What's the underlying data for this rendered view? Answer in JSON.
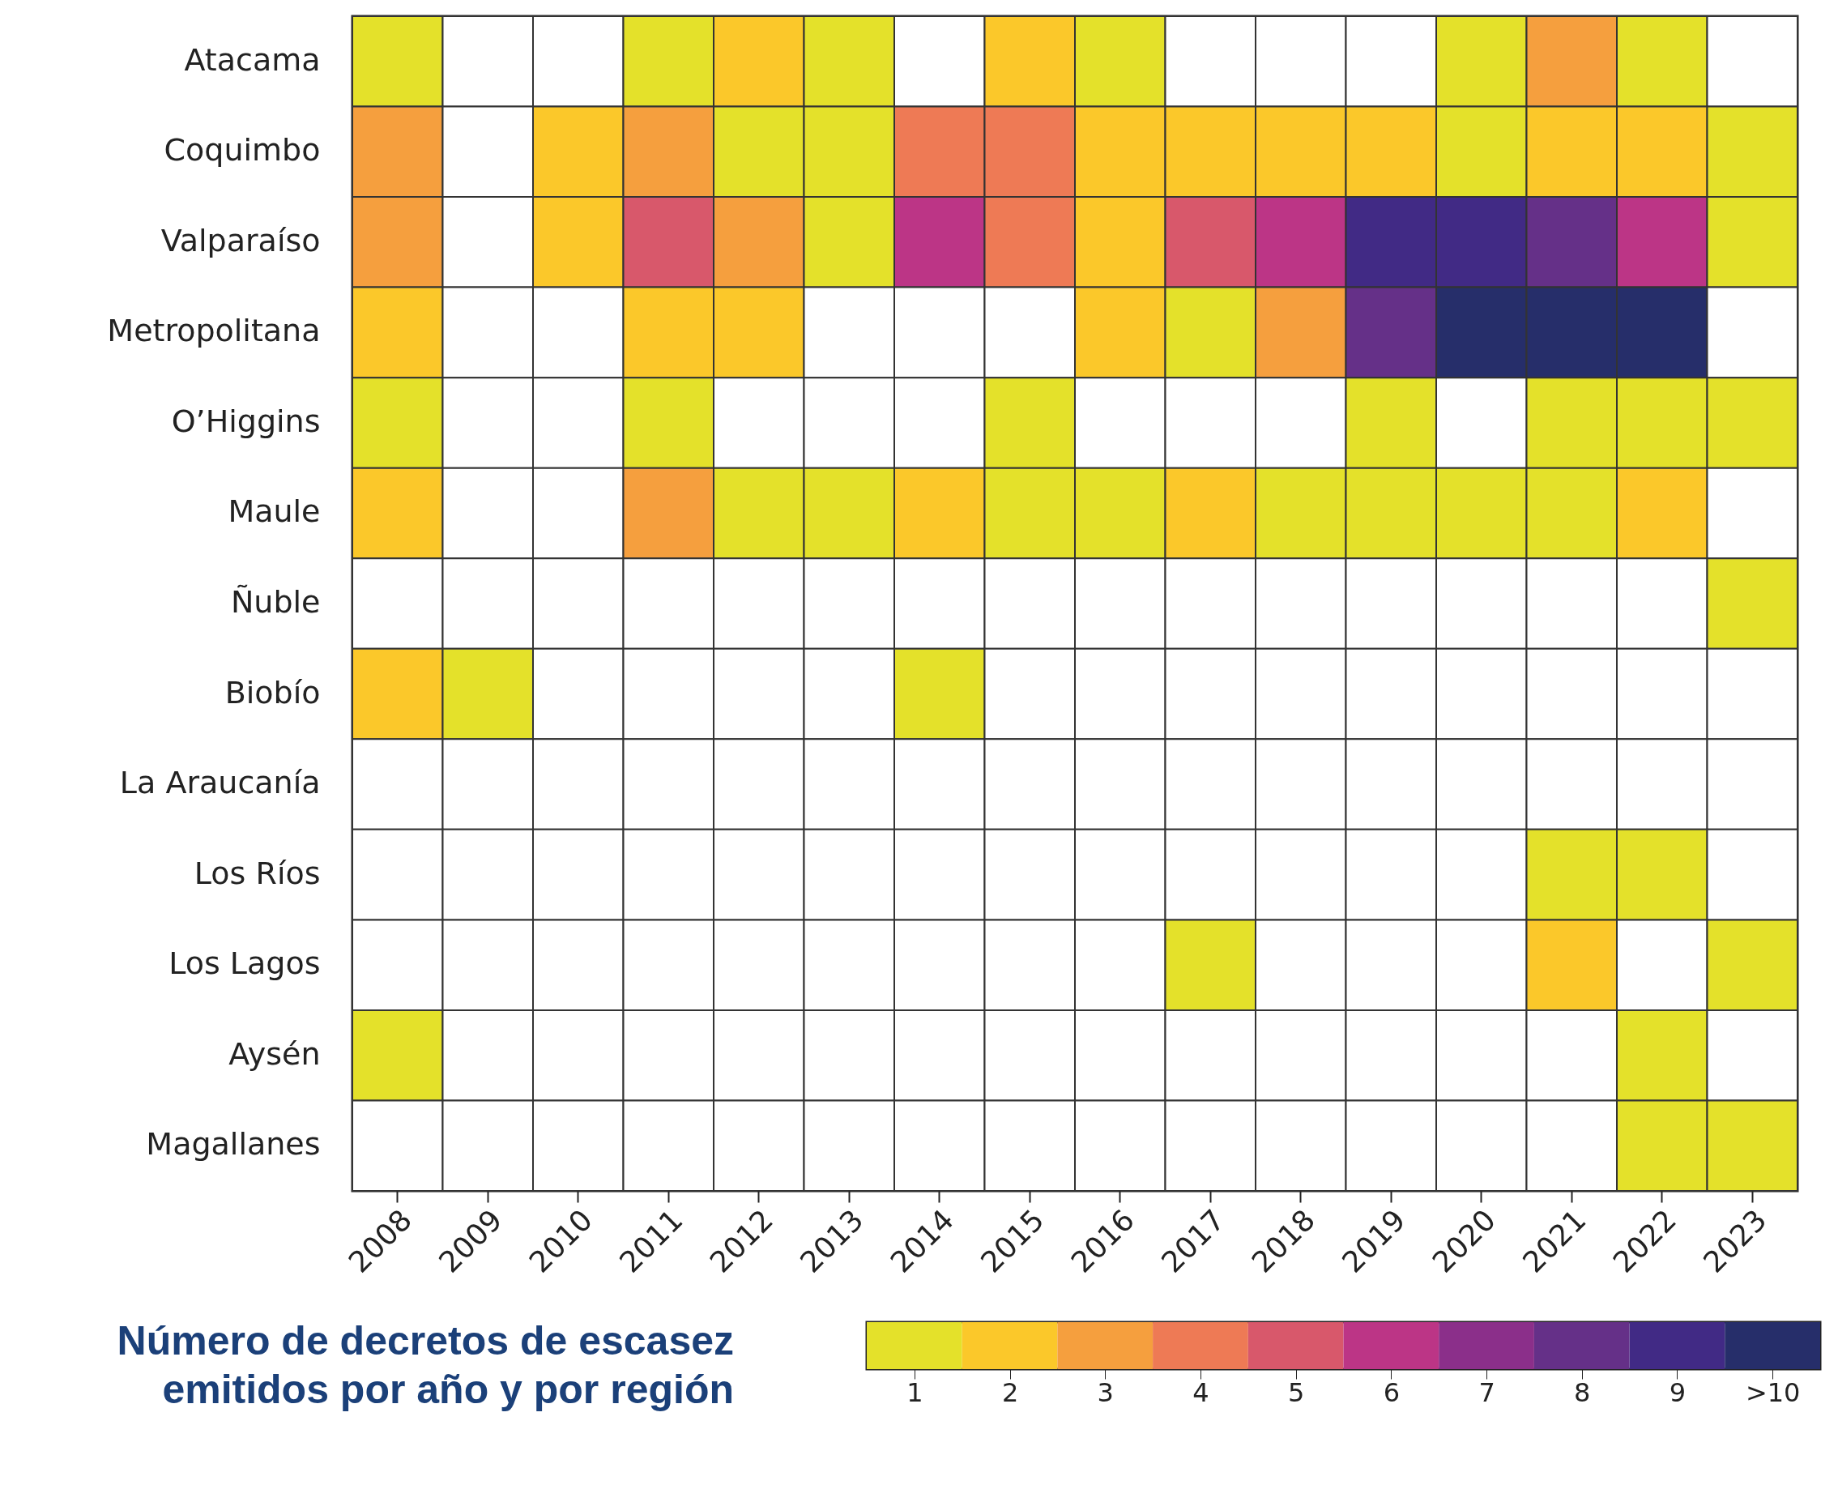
{
  "chart_data": {
    "type": "heatmap",
    "categories": [
      "2008",
      "2009",
      "2010",
      "2011",
      "2012",
      "2013",
      "2014",
      "2015",
      "2016",
      "2017",
      "2018",
      "2019",
      "2020",
      "2021",
      "2022",
      "2023"
    ],
    "y_categories": [
      "Atacama",
      "Coquimbo",
      "Valparaíso",
      "Metropolitana",
      "O’Higgins",
      "Maule",
      "Ñuble",
      "Biobío",
      "La Araucanía",
      "Los Ríos",
      "Los Lagos",
      "Aysén",
      "Magallanes"
    ],
    "cells": [
      [
        1,
        null,
        null,
        1,
        2,
        1,
        null,
        2,
        1,
        null,
        null,
        null,
        1,
        3,
        1,
        null
      ],
      [
        3,
        null,
        2,
        3,
        1,
        1,
        4,
        4,
        2,
        2,
        2,
        2,
        1,
        2,
        2,
        1
      ],
      [
        3,
        null,
        2,
        5,
        3,
        1,
        6,
        4,
        2,
        5,
        6,
        9,
        9,
        8,
        6,
        1
      ],
      [
        2,
        null,
        null,
        2,
        2,
        null,
        null,
        null,
        2,
        1,
        3,
        8,
        10,
        10,
        10,
        null
      ],
      [
        1,
        null,
        null,
        1,
        null,
        null,
        null,
        1,
        null,
        null,
        null,
        1,
        null,
        1,
        1,
        1
      ],
      [
        2,
        null,
        null,
        3,
        1,
        1,
        2,
        1,
        1,
        2,
        1,
        1,
        1,
        1,
        2,
        null
      ],
      [
        null,
        null,
        null,
        null,
        null,
        null,
        null,
        null,
        null,
        null,
        null,
        null,
        null,
        null,
        null,
        1
      ],
      [
        2,
        1,
        null,
        null,
        null,
        null,
        1,
        null,
        null,
        null,
        null,
        null,
        null,
        null,
        null,
        null
      ],
      [
        null,
        null,
        null,
        null,
        null,
        null,
        null,
        null,
        null,
        null,
        null,
        null,
        null,
        null,
        null,
        null
      ],
      [
        null,
        null,
        null,
        null,
        null,
        null,
        null,
        null,
        null,
        null,
        null,
        null,
        null,
        1,
        1,
        null
      ],
      [
        null,
        null,
        null,
        null,
        null,
        null,
        null,
        null,
        null,
        1,
        null,
        null,
        null,
        2,
        null,
        1
      ],
      [
        1,
        null,
        null,
        null,
        null,
        null,
        null,
        null,
        null,
        null,
        null,
        null,
        null,
        null,
        1,
        null
      ],
      [
        null,
        null,
        null,
        null,
        null,
        null,
        null,
        null,
        null,
        null,
        null,
        null,
        null,
        null,
        1,
        1
      ]
    ],
    "colors": [
      "#e4e12a",
      "#fbc82a",
      "#f59f3e",
      "#ee7a55",
      "#d8586b",
      "#bc3586",
      "#8b2f8a",
      "#653088",
      "#412a85",
      "#262e6a"
    ],
    "clim": [
      0.5,
      10.5
    ],
    "cticks": [
      1,
      2,
      3,
      4,
      5,
      6,
      7,
      8,
      9,
      {
        "value": 10,
        "label": ">10"
      }
    ],
    "clabel": "Número de decretos de escasez\nemitidos por año y por región"
  }
}
